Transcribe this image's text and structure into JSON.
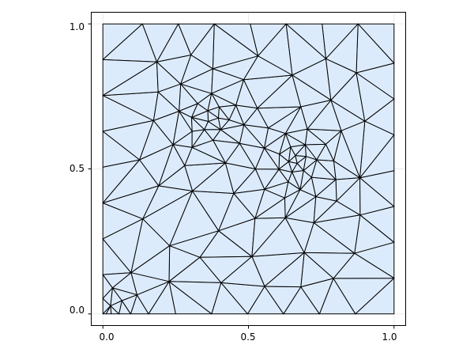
{
  "chart_data": {
    "type": "mesh",
    "title": "",
    "xlabel": "",
    "ylabel": "",
    "xlim": [
      -0.04,
      1.04
    ],
    "ylim": [
      -0.04,
      1.04
    ],
    "domain": [
      [
        0,
        0
      ],
      [
        1,
        0
      ],
      [
        1,
        1
      ],
      [
        0,
        1
      ]
    ],
    "xticks": [
      0.0,
      0.5,
      1.0
    ],
    "yticks": [
      0.0,
      0.5,
      1.0
    ],
    "xtick_labels": [
      "0.0",
      "0.5",
      "1.0"
    ],
    "ytick_labels": [
      "0.0",
      "0.5",
      "1.0"
    ],
    "grid": true,
    "refinement_centers": [
      [
        0.0,
        0.0
      ],
      [
        0.37,
        0.67
      ],
      [
        0.67,
        0.52
      ]
    ],
    "fill_color": "#dcebfc",
    "edge_color": "#000000",
    "grid_color": "#ebebeb"
  }
}
